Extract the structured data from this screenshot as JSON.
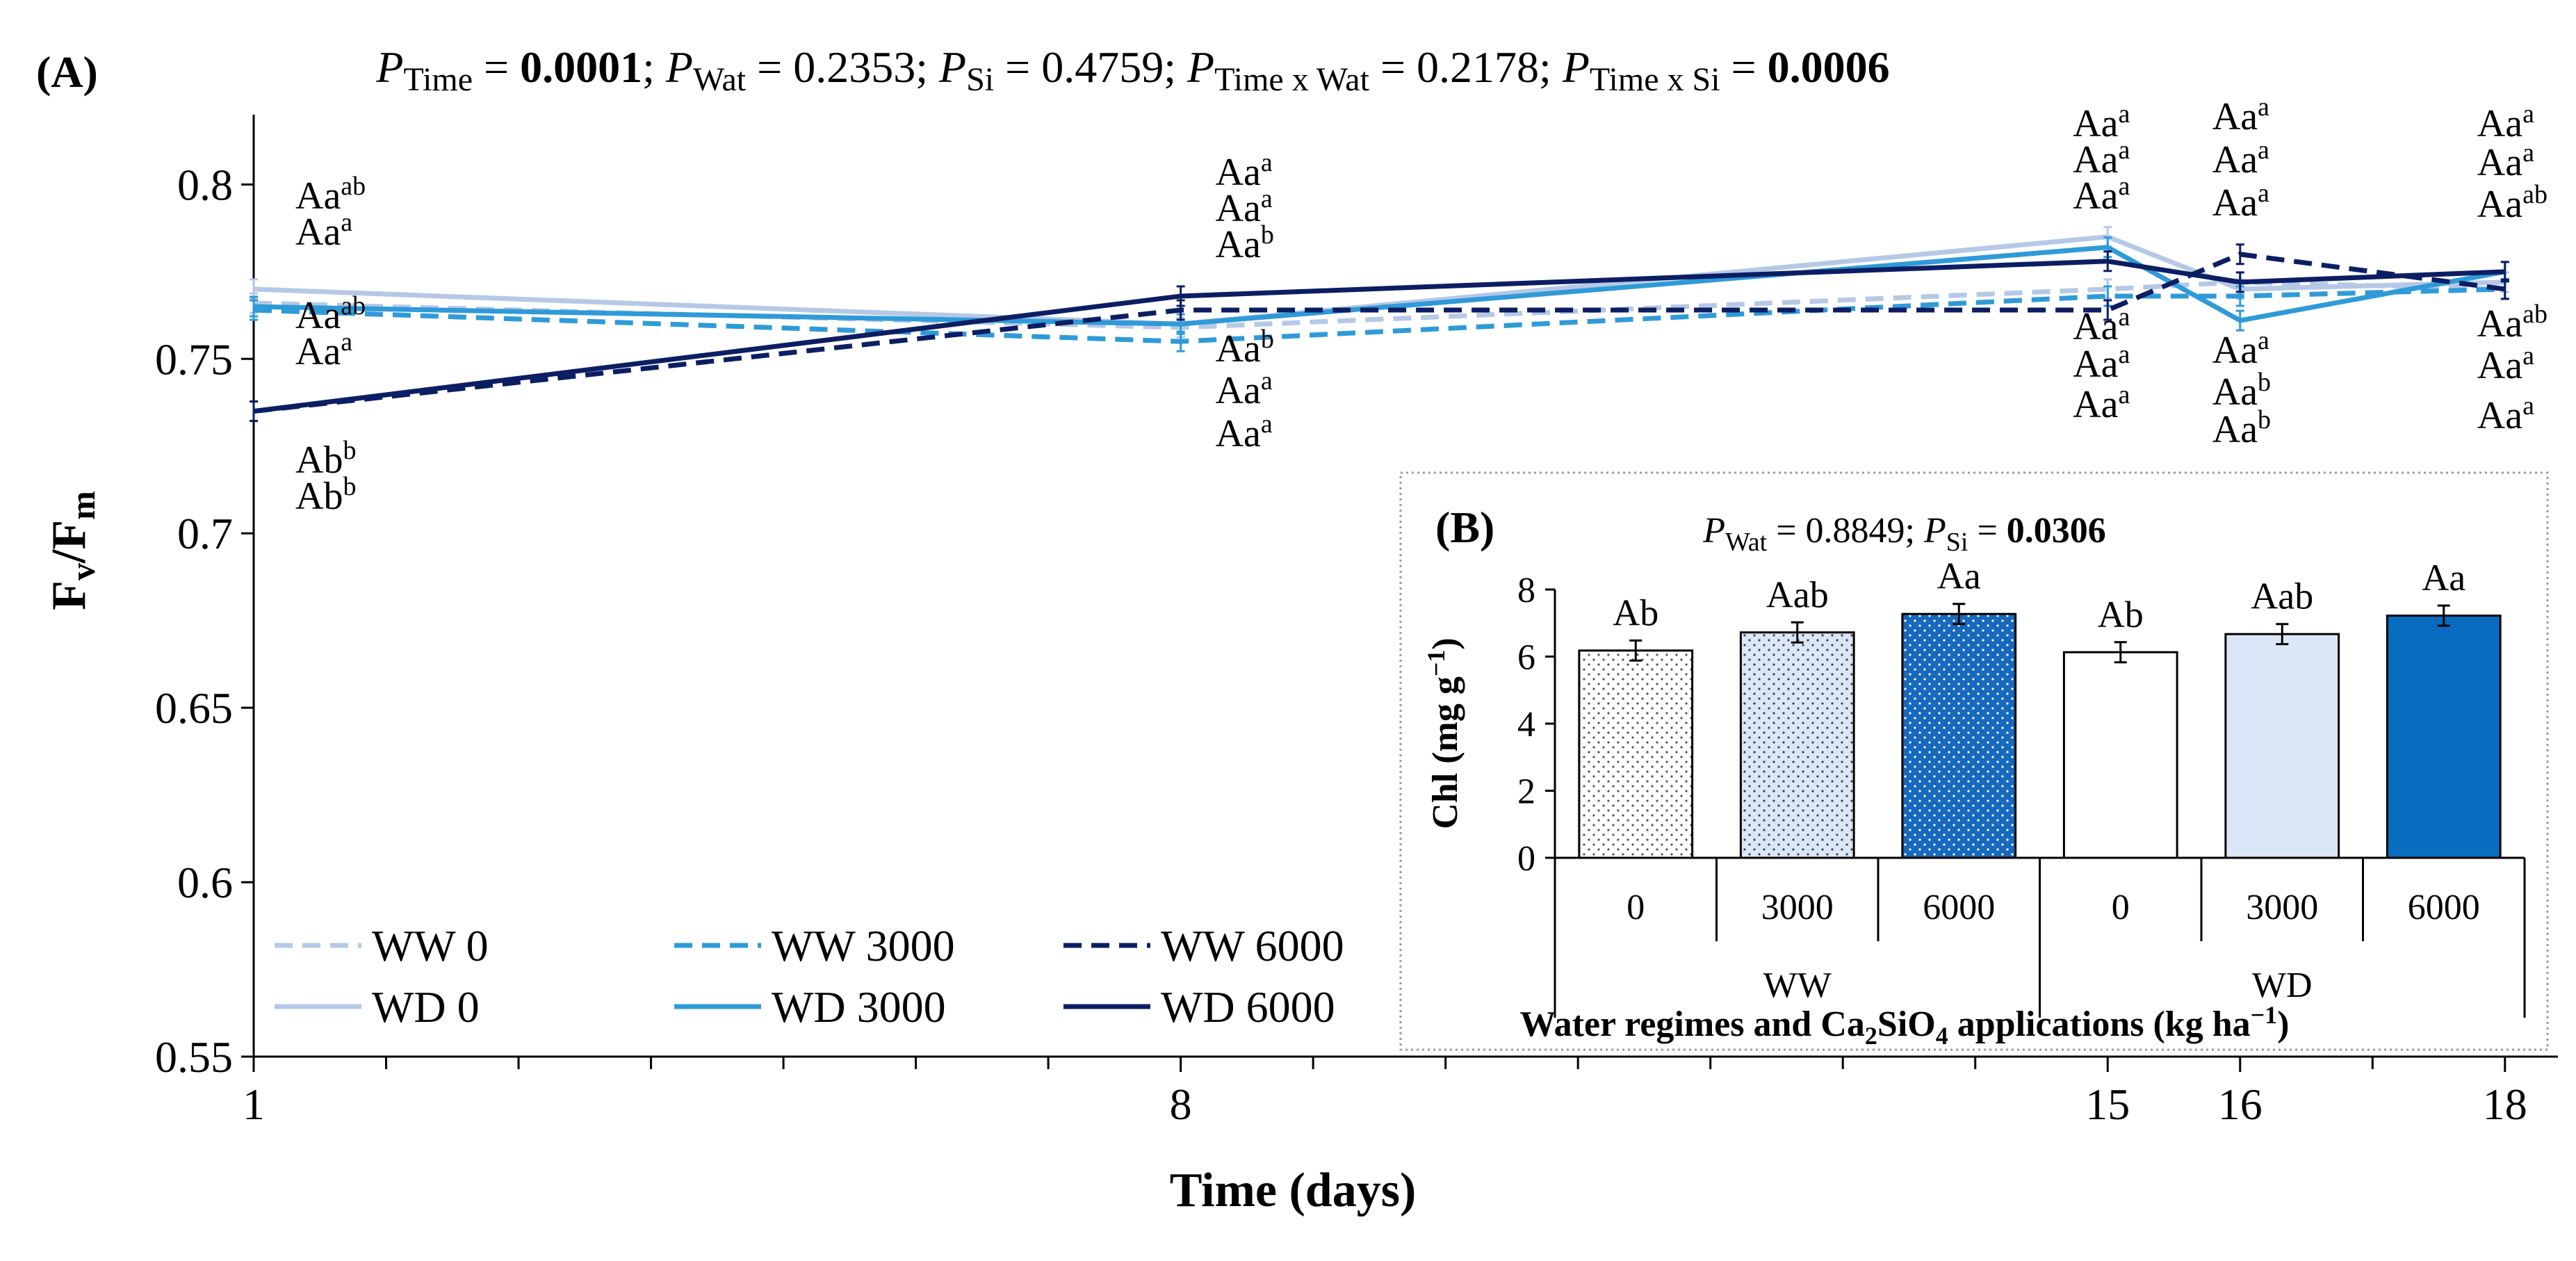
{
  "chart_data": [
    {
      "id": "A",
      "type": "line",
      "panel_label": "(A)",
      "title_parts": [
        {
          "p": "P",
          "sub": "Time",
          "val": "0.0001",
          "bold": true
        },
        {
          "p": "P",
          "sub": "Wat",
          "val": "0.2353",
          "bold": false
        },
        {
          "p": "P",
          "sub": "Si",
          "val": "0.4759",
          "bold": false
        },
        {
          "p": "P",
          "sub": "Time x Wat",
          "val": "0.2178",
          "bold": false
        },
        {
          "p": "P",
          "sub": "Time x Si",
          "val": "0.0006",
          "bold": true
        }
      ],
      "xlabel": "Time (days)",
      "ylabel": "Fv/Fm",
      "ylabel_main": "F",
      "ylabel_sub1": "v",
      "ylabel_slash": "/F",
      "ylabel_sub2": "m",
      "xlim": [
        1,
        18.4
      ],
      "ylim": [
        0.55,
        0.82
      ],
      "xticks": [
        1,
        8,
        15,
        16,
        18
      ],
      "xtick_labels": [
        "1",
        "8",
        "15",
        "16",
        "18"
      ],
      "minor_xticks": [
        2,
        3,
        4,
        5,
        6,
        7,
        9,
        10,
        11,
        12,
        13,
        14,
        17
      ],
      "yticks": [
        0.55,
        0.6,
        0.65,
        0.7,
        0.75,
        0.8
      ],
      "ytick_labels": [
        "0.55",
        "0.6",
        "0.65",
        "0.7",
        "0.75",
        "0.8"
      ],
      "x": [
        1,
        8,
        15,
        16,
        18
      ],
      "series": [
        {
          "name": "WW 0",
          "color": "#b5c8e6",
          "dash": true,
          "values": [
            0.766,
            0.759,
            0.77,
            0.772,
            0.77
          ]
        },
        {
          "name": "WD 0",
          "color": "#b5c8e6",
          "dash": false,
          "values": [
            0.77,
            0.76,
            0.785,
            0.77,
            0.772
          ]
        },
        {
          "name": "WW 3000",
          "color": "#2f9ad8",
          "dash": true,
          "values": [
            0.764,
            0.755,
            0.768,
            0.768,
            0.77
          ]
        },
        {
          "name": "WD 3000",
          "color": "#2f9ad8",
          "dash": false,
          "values": [
            0.765,
            0.76,
            0.782,
            0.761,
            0.775
          ]
        },
        {
          "name": "WW 6000",
          "color": "#0c1e63",
          "dash": true,
          "values": [
            0.735,
            0.764,
            0.764,
            0.78,
            0.77
          ]
        },
        {
          "name": "WD 6000",
          "color": "#0c1e63",
          "dash": false,
          "values": [
            0.735,
            0.768,
            0.778,
            0.772,
            0.775
          ]
        }
      ],
      "annotations": [
        {
          "x": 1,
          "labels": [
            {
              "base": "Aa",
              "sup": "ab"
            },
            {
              "base": "Aa",
              "sup": "a"
            },
            {
              "base": "Aa",
              "sup": "ab"
            },
            {
              "base": "Aa",
              "sup": "a"
            },
            {
              "base": "Ab",
              "sup": "b"
            },
            {
              "base": "Ab",
              "sup": "b"
            }
          ]
        },
        {
          "x": 8,
          "labels": [
            {
              "base": "Aa",
              "sup": "a"
            },
            {
              "base": "Aa",
              "sup": "a"
            },
            {
              "base": "Aa",
              "sup": "b"
            },
            {
              "base": "Aa",
              "sup": "b"
            },
            {
              "base": "Aa",
              "sup": "a"
            },
            {
              "base": "Aa",
              "sup": "a"
            }
          ]
        },
        {
          "x": 15,
          "labels": [
            {
              "base": "Aa",
              "sup": "a"
            },
            {
              "base": "Aa",
              "sup": "a"
            },
            {
              "base": "Aa",
              "sup": "a"
            },
            {
              "base": "Aa",
              "sup": "a"
            },
            {
              "base": "Aa",
              "sup": "a"
            },
            {
              "base": "Aa",
              "sup": "a"
            }
          ]
        },
        {
          "x": 16,
          "labels": [
            {
              "base": "Aa",
              "sup": "a"
            },
            {
              "base": "Aa",
              "sup": "a"
            },
            {
              "base": "Aa",
              "sup": "a"
            },
            {
              "base": "Aa",
              "sup": "a"
            },
            {
              "base": "Aa",
              "sup": "b"
            },
            {
              "base": "Aa",
              "sup": "b"
            }
          ]
        },
        {
          "x": 18,
          "labels": [
            {
              "base": "Aa",
              "sup": "a"
            },
            {
              "base": "Aa",
              "sup": "a"
            },
            {
              "base": "Aa",
              "sup": "ab"
            },
            {
              "base": "Aa",
              "sup": "ab"
            },
            {
              "base": "Aa",
              "sup": "a"
            },
            {
              "base": "Aa",
              "sup": "a"
            }
          ]
        }
      ]
    },
    {
      "id": "B",
      "type": "bar",
      "panel_label": "(B)",
      "title_parts": [
        {
          "p": "P",
          "sub": "Wat",
          "val": "0.8849",
          "bold": false
        },
        {
          "p": "P",
          "sub": "Si",
          "val": "0.0306",
          "bold": true
        }
      ],
      "ylabel": "Chl (mg g⁻¹)",
      "ylabel_main": "Chl (mg g",
      "ylabel_sup": "−1",
      "ylabel_close": ")",
      "xlabel": "Water regimes and Ca2SiO4 applications (kg ha−1)",
      "xlabel_parts": [
        "Water regimes and Ca",
        "2",
        "SiO",
        "4",
        " applications (kg ha",
        "−1",
        ")"
      ],
      "ylim": [
        0,
        8
      ],
      "yticks": [
        0,
        2,
        4,
        6,
        8
      ],
      "ytick_labels": [
        "0",
        "2",
        "4",
        "6",
        "8"
      ],
      "categories": [
        "0",
        "3000",
        "6000",
        "0",
        "3000",
        "6000"
      ],
      "groups": [
        {
          "name": "WW",
          "span": [
            0,
            2
          ]
        },
        {
          "name": "WD",
          "span": [
            3,
            5
          ]
        }
      ],
      "values": [
        6.18,
        6.72,
        7.27,
        6.13,
        6.67,
        7.22
      ],
      "errors": [
        0.3,
        0.3,
        0.3,
        0.3,
        0.3,
        0.3
      ],
      "fills": [
        "#ffffff",
        "#dbe7f6",
        "#1769bd",
        "#ffffff",
        "#dbe7f6",
        "#0a6cc0"
      ],
      "dotted": [
        true,
        true,
        true,
        false,
        false,
        false
      ],
      "bar_labels": [
        "Ab",
        "Aab",
        "Aa",
        "Ab",
        "Aab",
        "Aa"
      ]
    }
  ],
  "legend": [
    "WW 0",
    "WW 3000",
    "WW 6000",
    "WD 0",
    "WD 3000",
    "WD 6000"
  ]
}
